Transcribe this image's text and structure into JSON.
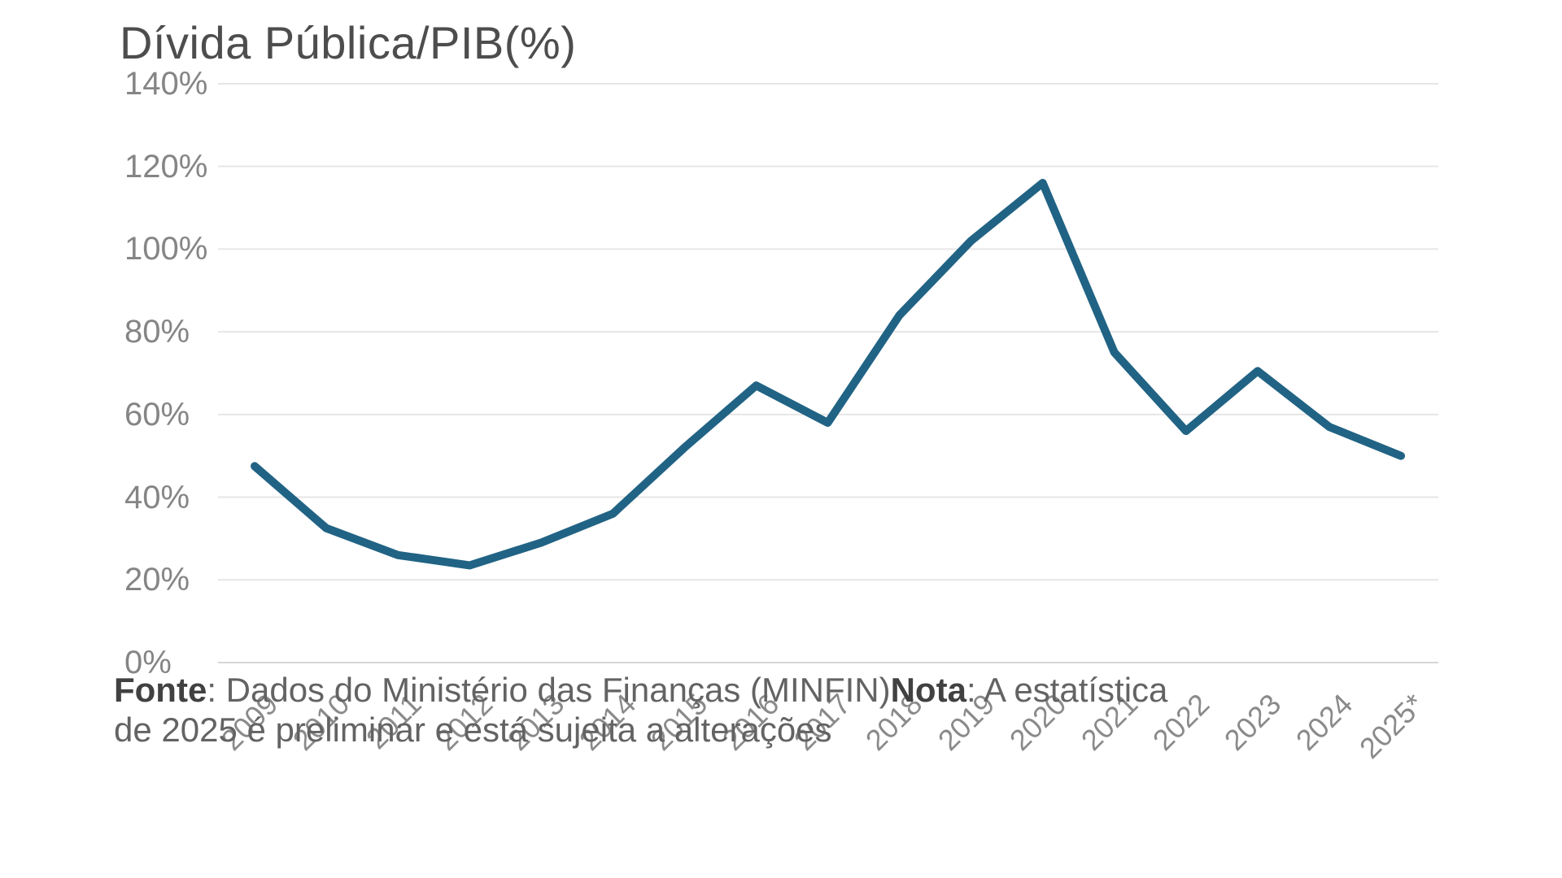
{
  "title": "Dívida Pública/PIB(%)",
  "chart_data": {
    "type": "line",
    "title": "Dívida Pública/PIB(%)",
    "categories": [
      "2009",
      "2010",
      "2011",
      "2012",
      "2013",
      "2014",
      "2015",
      "2016",
      "2017",
      "2018",
      "2019",
      "2020",
      "2021",
      "2022",
      "2023",
      "2024",
      "2025*"
    ],
    "values": [
      47.5,
      32.5,
      26,
      23.5,
      29,
      36,
      52,
      67,
      58,
      84,
      102,
      116,
      75,
      56,
      70.5,
      57,
      50
    ],
    "xlabel": "",
    "ylabel": "",
    "ylim": [
      0,
      140
    ],
    "yticks": [
      0,
      20,
      40,
      60,
      80,
      100,
      120,
      140
    ],
    "ytick_labels": [
      "0%",
      "20%",
      "40%",
      "60%",
      "80%",
      "100%",
      "120%",
      "140%"
    ],
    "grid": true,
    "legend_position": "none",
    "series_name": "Dívida Pública/PIB(%)"
  },
  "footer": {
    "line1": [
      {
        "text": "Fonte",
        "bold": true
      },
      {
        "text": ": Dados do Ministério das Finanças (MINFIN)",
        "bold": false
      },
      {
        "text": "Nota",
        "bold": true
      },
      {
        "text": ": A estatística",
        "bold": false
      }
    ],
    "line2": [
      {
        "text": "de 2025 é preliminar e está sujeita a alterações",
        "bold": false
      }
    ]
  },
  "colors": {
    "line": "#216384",
    "grid": "#e6e6e6",
    "baseline": "#d6d6d6",
    "title_text": "#4d4d4d",
    "axis_text": "#858585",
    "footer_text": "#636363",
    "footer_bold_text": "#414141",
    "background": "#ffffff"
  }
}
